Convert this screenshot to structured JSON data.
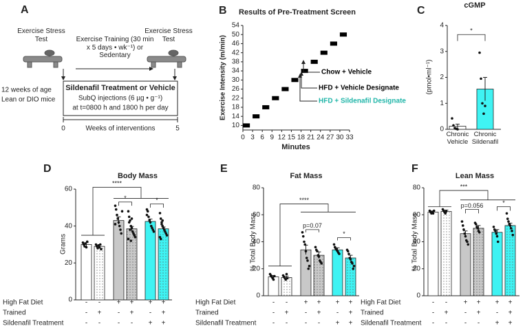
{
  "protocol": {
    "label": "A",
    "pre_test": "Exercise Stress Test",
    "training": "Exercise Training (30 min x 5 days • wk⁻¹) or Sedentary",
    "post_test": "Exercise Stress Test",
    "age": "12 weeks of age",
    "mice": "Lean or DIO mice",
    "treatment": {
      "title": "Sildenafil Treatment or Vehicle",
      "lines": [
        "SubQ injections (6 µg • g⁻¹)",
        "at t=0800 h and 1800 h per day"
      ]
    },
    "timeline": {
      "start": "0",
      "label": "Weeks of interventions",
      "end": "5"
    }
  },
  "chart_data": [
    {
      "type": "step",
      "panel_label": "B",
      "title": "Results of Pre-Treatment Screen",
      "x_label": "Minutes",
      "y_label": "Exercise Intensity (m/min)",
      "x": [
        0,
        3,
        6,
        9,
        12,
        15,
        18,
        21,
        24,
        27,
        30
      ],
      "values": [
        10,
        14,
        18,
        22,
        26,
        30,
        34,
        38,
        42,
        46,
        50
      ],
      "color": "#000000",
      "xlim": [
        0,
        33
      ],
      "xticks": [
        0,
        3,
        6,
        9,
        12,
        15,
        18,
        21,
        24,
        27,
        30,
        33
      ],
      "ylim": [
        8,
        54
      ],
      "yticks": [
        10,
        14,
        18,
        22,
        26,
        30,
        34,
        38,
        42,
        46,
        50,
        54
      ],
      "annotations": [
        {
          "text": "Chow + Vehicle",
          "color": "#000000"
        },
        {
          "text": "HFD + Vehicle Designate",
          "color": "#000000"
        },
        {
          "text": "HFD + Sildenafil Designate",
          "color": "#1fb5a8"
        }
      ]
    },
    {
      "type": "bar",
      "panel_label": "C",
      "title": "cGMP",
      "y_label": "(pmol•ml⁻¹)",
      "categories": [
        "Chronic Vehicle",
        "Chronic Sildenafil"
      ],
      "values": [
        0.12,
        1.55
      ],
      "errors": [
        0.08,
        0.45
      ],
      "points": [
        [
          0.42,
          0.15,
          0.05,
          0.02,
          0.0
        ],
        [
          2.95,
          1.95,
          1.0,
          0.6,
          0.9
        ]
      ],
      "colors": [
        "#ffffff",
        "#3ff3f3"
      ],
      "dotted": [
        false,
        false
      ],
      "ylim": [
        0,
        4
      ],
      "yticks": [
        0,
        1,
        2,
        3,
        4
      ],
      "annotations": [
        "*"
      ]
    },
    {
      "type": "bar",
      "panel_label": "D",
      "title": "Body Mass",
      "y_label": "Grams",
      "values": [
        30,
        29,
        43,
        38.5,
        42.5,
        38.5
      ],
      "errors": [
        1,
        0.8,
        2,
        1.3,
        1.3,
        1
      ],
      "points": [
        [
          31,
          30,
          29,
          30.5,
          28.5,
          31.5
        ],
        [
          30,
          29,
          28,
          29.5,
          28.5,
          30,
          27.5
        ],
        [
          51,
          49,
          46,
          44,
          42,
          40,
          38,
          36,
          48,
          41
        ],
        [
          48,
          45,
          43,
          40,
          39,
          37,
          36,
          35,
          34,
          33,
          42,
          38,
          32,
          44
        ],
        [
          49,
          48,
          45,
          43,
          42,
          40,
          39,
          38,
          37,
          46
        ],
        [
          47,
          44,
          42,
          40,
          39,
          38,
          37,
          36,
          35,
          34,
          33,
          41,
          43
        ]
      ],
      "colors": [
        "#ffffff",
        "#ffffff",
        "#c8c8c8",
        "#c8c8c8",
        "#3ff3f3",
        "#3ff3f3"
      ],
      "dotted": [
        false,
        true,
        false,
        true,
        false,
        true
      ],
      "ylim": [
        0,
        60
      ],
      "yticks": [
        0,
        20,
        40,
        60
      ],
      "annotations": [
        "****",
        "*",
        "*"
      ],
      "conditions": [
        {
          "label": "High Fat Diet",
          "marks": [
            "-",
            "-",
            "+",
            "+",
            "+",
            "+"
          ]
        },
        {
          "label": "Trained",
          "marks": [
            "-",
            "+",
            "-",
            "+",
            "-",
            "+"
          ]
        },
        {
          "label": "Sildenafil Treatment",
          "marks": [
            "-",
            "-",
            "-",
            "-",
            "+",
            "+"
          ]
        }
      ]
    },
    {
      "type": "bar",
      "panel_label": "E",
      "title": "Fat Mass",
      "y_label": "% Total Body Mass",
      "values": [
        14,
        13.5,
        34,
        30,
        34,
        28
      ],
      "errors": [
        1,
        1,
        3.5,
        2.5,
        1.5,
        2
      ],
      "points": [
        [
          16,
          15,
          14,
          13,
          12,
          14.5
        ],
        [
          15,
          14,
          13,
          12,
          16,
          13
        ],
        [
          47,
          44,
          40,
          38,
          33,
          28,
          26,
          20,
          22
        ],
        [
          36,
          34,
          33,
          30,
          29,
          26,
          25,
          24
        ],
        [
          38,
          36,
          35,
          34,
          33,
          32,
          31
        ],
        [
          34,
          33,
          31,
          28,
          27,
          25,
          24,
          20,
          22
        ]
      ],
      "colors": [
        "#ffffff",
        "#ffffff",
        "#c8c8c8",
        "#c8c8c8",
        "#3ff3f3",
        "#3ff3f3"
      ],
      "dotted": [
        false,
        true,
        false,
        true,
        false,
        true
      ],
      "ylim": [
        0,
        80
      ],
      "yticks": [
        0,
        20,
        40,
        60,
        80
      ],
      "annotations": [
        "****",
        "p=0.07",
        "*"
      ],
      "conditions": [
        {
          "label": "High Fat Diet",
          "marks": [
            "-",
            "-",
            "+",
            "+",
            "+",
            "+"
          ]
        },
        {
          "label": "Trained",
          "marks": [
            "-",
            "+",
            "-",
            "+",
            "-",
            "+"
          ]
        },
        {
          "label": "Sildenafil Treatment",
          "marks": [
            "-",
            "-",
            "-",
            "-",
            "+",
            "+"
          ]
        }
      ]
    },
    {
      "type": "bar",
      "panel_label": "F",
      "title": "Lean Mass",
      "y_label": "% Total Body Mass",
      "values": [
        62,
        62.5,
        46,
        50,
        47,
        52
      ],
      "errors": [
        0.8,
        1,
        2,
        2,
        2,
        1.8
      ],
      "points": [
        [
          63,
          62,
          61,
          62,
          61,
          63
        ],
        [
          64,
          63,
          62,
          61,
          62.5
        ],
        [
          55,
          52,
          49,
          46,
          44,
          41,
          40,
          38
        ],
        [
          54,
          53,
          51,
          50,
          48,
          47
        ],
        [
          51,
          49,
          48,
          46,
          44,
          40
        ],
        [
          61,
          57,
          55,
          53,
          52,
          50,
          48,
          45
        ]
      ],
      "colors": [
        "#ffffff",
        "#ffffff",
        "#c8c8c8",
        "#c8c8c8",
        "#3ff3f3",
        "#3ff3f3"
      ],
      "dotted": [
        false,
        true,
        false,
        true,
        false,
        true
      ],
      "ylim": [
        0,
        80
      ],
      "yticks": [
        0,
        20,
        40,
        60,
        80
      ],
      "annotations": [
        "***",
        "p=0.056",
        "*"
      ],
      "conditions": [
        {
          "label": "High Fat Diet",
          "marks": [
            "-",
            "-",
            "+",
            "+",
            "+",
            "+"
          ]
        },
        {
          "label": "Trained",
          "marks": [
            "-",
            "+",
            "-",
            "+",
            "-",
            "+"
          ]
        },
        {
          "label": "Sildenafil Treatment",
          "marks": [
            "-",
            "-",
            "-",
            "-",
            "+",
            "+"
          ]
        }
      ]
    }
  ]
}
